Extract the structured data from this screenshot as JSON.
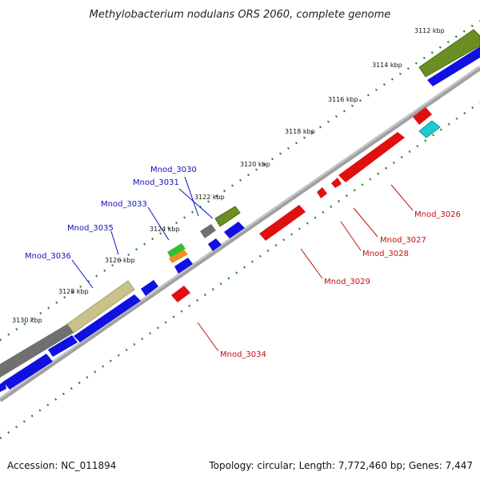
{
  "title": "Methylobacterium nodulans ORS 2060, complete genome",
  "accession": "Accession: NC_011894",
  "summary": "Topology: circular; Length: 7,772,460 bp; Genes: 7,447",
  "ticks": [
    "3112 kbp",
    "3114 kbp",
    "3116 kbp",
    "3118 kbp",
    "3120 kbp",
    "3122 kbp",
    "3124 kbp",
    "3126 kbp",
    "3128 kbp",
    "3130 kbp"
  ],
  "labels_forward": [
    "Mnod_3030",
    "Mnod_3031",
    "Mnod_3033",
    "Mnod_3035",
    "Mnod_3036"
  ],
  "labels_reverse": [
    "Mnod_3026",
    "Mnod_3027",
    "Mnod_3028",
    "Mnod_3029",
    "Mnod_3034"
  ],
  "colors": {
    "forward_cds": "#1010e0",
    "reverse_cds": "#e01010",
    "backbone": "#808080",
    "tick_dots": "#2a8a2a",
    "label_forward": "#1010c0",
    "label_reverse": "#c01010",
    "olive": "#6b8e23",
    "khaki": "#c8c28a",
    "gray": "#707070",
    "cyan": "#20c8d0",
    "green": "#30c030",
    "orange": "#f09020"
  }
}
